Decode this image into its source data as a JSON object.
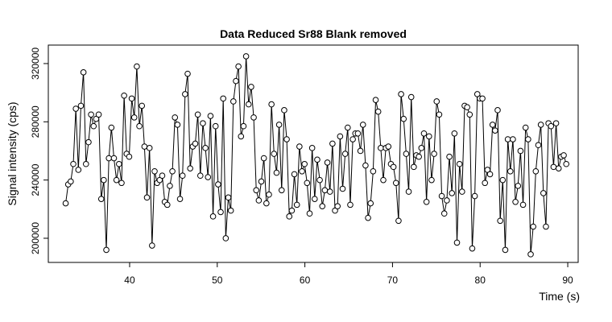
{
  "chart_data": {
    "type": "line",
    "title": "Data Reduced Sr88 Blank removed",
    "x_label": "Time (s)",
    "y_label": "Signal intensity (cps)",
    "color": "#000000",
    "x": [
      32.7,
      32.99,
      33.28,
      33.57,
      33.86,
      34.15,
      34.44,
      34.73,
      35.02,
      35.31,
      35.6,
      35.89,
      36.18,
      36.47,
      36.76,
      37.05,
      37.34,
      37.63,
      37.92,
      38.21,
      38.5,
      38.79,
      39.08,
      39.37,
      39.66,
      39.95,
      40.24,
      40.53,
      40.82,
      41.11,
      41.4,
      41.69,
      41.98,
      42.27,
      42.56,
      42.85,
      43.14,
      43.43,
      43.72,
      44.01,
      44.3,
      44.59,
      44.88,
      45.17,
      45.46,
      45.75,
      46.04,
      46.33,
      46.62,
      46.91,
      47.2,
      47.49,
      47.78,
      48.07,
      48.36,
      48.65,
      48.94,
      49.23,
      49.52,
      49.81,
      50.1,
      50.39,
      50.68,
      50.97,
      51.26,
      51.55,
      51.84,
      52.13,
      52.42,
      52.71,
      53,
      53.29,
      53.58,
      53.87,
      54.16,
      54.45,
      54.74,
      55.03,
      55.32,
      55.61,
      55.9,
      56.19,
      56.48,
      56.77,
      57.06,
      57.35,
      57.64,
      57.93,
      58.22,
      58.51,
      58.8,
      59.09,
      59.38,
      59.67,
      59.96,
      60.25,
      60.54,
      60.83,
      61.12,
      61.41,
      61.7,
      61.99,
      62.28,
      62.57,
      62.86,
      63.15,
      63.44,
      63.73,
      64.02,
      64.31,
      64.6,
      64.89,
      65.18,
      65.47,
      65.76,
      66.05,
      66.34,
      66.63,
      66.92,
      67.21,
      67.5,
      67.79,
      68.08,
      68.37,
      68.66,
      68.95,
      69.24,
      69.53,
      69.82,
      70.11,
      70.4,
      70.69,
      70.98,
      71.27,
      71.56,
      71.85,
      72.14,
      72.43,
      72.72,
      73.01,
      73.3,
      73.59,
      73.88,
      74.17,
      74.46,
      74.75,
      75.04,
      75.33,
      75.62,
      75.91,
      76.2,
      76.49,
      76.78,
      77.07,
      77.36,
      77.65,
      77.94,
      78.23,
      78.52,
      78.81,
      79.1,
      79.39,
      79.68,
      79.97,
      80.26,
      80.55,
      80.84,
      81.13,
      81.42,
      81.71,
      82,
      82.29,
      82.58,
      82.87,
      83.16,
      83.45,
      83.74,
      84.03,
      84.32,
      84.61,
      84.9,
      85.19,
      85.48,
      85.77,
      86.06,
      86.35,
      86.64,
      86.93,
      87.22,
      87.51,
      87.8,
      88.09,
      88.38,
      88.67,
      88.96,
      89.25,
      89.54,
      89.83
    ],
    "values": [
      224000,
      237000,
      239000,
      251000,
      289000,
      247000,
      291000,
      314000,
      251000,
      266000,
      285000,
      277000,
      282000,
      285000,
      227000,
      240000,
      192000,
      255000,
      276000,
      255000,
      240000,
      251000,
      238000,
      298000,
      258000,
      256000,
      296000,
      283000,
      318000,
      277000,
      291000,
      263000,
      228000,
      262000,
      195000,
      246000,
      238000,
      240000,
      243000,
      225000,
      223000,
      236000,
      246000,
      283000,
      278000,
      227000,
      243000,
      299000,
      313000,
      248000,
      263000,
      265000,
      285000,
      243000,
      279000,
      262000,
      242000,
      284000,
      215000,
      277000,
      237000,
      218000,
      296000,
      200000,
      228000,
      219000,
      294000,
      308000,
      318000,
      270000,
      277000,
      325000,
      292000,
      304000,
      283000,
      233000,
      226000,
      239000,
      255000,
      224000,
      230000,
      292000,
      258000,
      245000,
      278000,
      233000,
      288000,
      268000,
      215000,
      219000,
      244000,
      223000,
      263000,
      246000,
      251000,
      238000,
      217000,
      262000,
      227000,
      254000,
      240000,
      222000,
      233000,
      252000,
      232000,
      265000,
      219000,
      222000,
      270000,
      234000,
      258000,
      276000,
      223000,
      268000,
      272000,
      272000,
      260000,
      278000,
      250000,
      214000,
      224000,
      246000,
      295000,
      287000,
      262000,
      240000,
      262000,
      263000,
      251000,
      249000,
      238000,
      212000,
      299000,
      282000,
      258000,
      232000,
      297000,
      249000,
      257000,
      256000,
      262000,
      272000,
      225000,
      270000,
      240000,
      258000,
      294000,
      285000,
      229000,
      217000,
      226000,
      256000,
      231000,
      272000,
      197000,
      251000,
      232000,
      291000,
      290000,
      285000,
      193000,
      229000,
      299000,
      296000,
      296000,
      238000,
      247000,
      244000,
      278000,
      274000,
      288000,
      212000,
      240000,
      192000,
      268000,
      246000,
      268000,
      225000,
      236000,
      260000,
      223000,
      276000,
      268000,
      189000,
      208000,
      246000,
      264000,
      278000,
      231000,
      208000,
      279000,
      277000,
      249000,
      279000,
      248000,
      256000,
      257000,
      251000
    ],
    "xlim": [
      30.72,
      91.19
    ],
    "ylim": [
      183400,
      332700
    ],
    "xticks": [
      40,
      50,
      60,
      70,
      80,
      90
    ],
    "yticks": [
      200000,
      240000,
      280000,
      320000
    ]
  }
}
